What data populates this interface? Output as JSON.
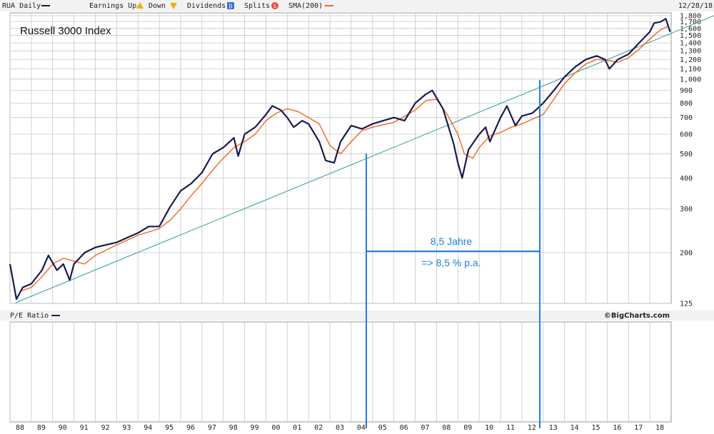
{
  "header": {
    "symbol_label": "RUA Daily",
    "earnings_label": "Earnings Up",
    "down_label": "Down",
    "dividends_label": "Dividends",
    "dividends_glyph": "D",
    "splits_label": "Splits",
    "splits_glyph": "S",
    "sma_label": "SMA(200)",
    "date": "12/28/18"
  },
  "pe_panel": {
    "label": "P/E Ratio",
    "source": "©BigCharts.com"
  },
  "colors": {
    "price": "#1a1a4e",
    "sma": "#f26522",
    "trend": "#2a9d9d",
    "annotation": "#1f7fe0",
    "grid": "#c8c8c8",
    "header_bg": "#f2f2f2"
  },
  "chart_data": {
    "type": "line",
    "title": "Russell 3000 Index",
    "scale": "log",
    "ylim": [
      125,
      1800
    ],
    "y_ticks": [
      125,
      200,
      300,
      400,
      500,
      600,
      700,
      800,
      900,
      1000,
      1100,
      1200,
      1300,
      1400,
      1500,
      1600,
      1700,
      1800
    ],
    "x_tick_labels": [
      "88",
      "89",
      "90",
      "91",
      "92",
      "93",
      "94",
      "95",
      "96",
      "97",
      "98",
      "99",
      "00",
      "01",
      "02",
      "03",
      "04",
      "05",
      "06",
      "07",
      "08",
      "09",
      "10",
      "11",
      "12",
      "13",
      "14",
      "15",
      "16",
      "17",
      "18"
    ],
    "xlim": [
      1988.0,
      2019.0
    ],
    "series": [
      {
        "name": "RUA Daily",
        "x": [
          1988.0,
          1988.3,
          1988.6,
          1989.0,
          1989.5,
          1989.8,
          1990.2,
          1990.5,
          1990.8,
          1991.0,
          1991.5,
          1992.0,
          1992.5,
          1993.0,
          1993.5,
          1994.0,
          1994.5,
          1995.0,
          1995.5,
          1996.0,
          1996.5,
          1997.0,
          1997.5,
          1998.0,
          1998.5,
          1998.7,
          1999.0,
          1999.5,
          2000.0,
          2000.3,
          2000.7,
          2001.0,
          2001.3,
          2001.7,
          2002.0,
          2002.5,
          2002.8,
          2003.2,
          2003.5,
          2004.0,
          2004.5,
          2005.0,
          2005.5,
          2006.0,
          2006.5,
          2007.0,
          2007.5,
          2007.8,
          2008.3,
          2008.8,
          2009.0,
          2009.2,
          2009.5,
          2010.0,
          2010.3,
          2010.5,
          2011.0,
          2011.3,
          2011.7,
          2012.0,
          2012.5,
          2013.0,
          2013.5,
          2014.0,
          2014.5,
          2015.0,
          2015.5,
          2015.9,
          2016.1,
          2016.5,
          2017.0,
          2017.5,
          2018.0,
          2018.2,
          2018.5,
          2018.75,
          2018.95
        ],
        "y": [
          180,
          130,
          145,
          150,
          170,
          195,
          170,
          180,
          155,
          180,
          200,
          210,
          215,
          220,
          230,
          240,
          255,
          255,
          305,
          355,
          380,
          420,
          500,
          530,
          580,
          490,
          600,
          640,
          720,
          780,
          750,
          700,
          640,
          680,
          660,
          560,
          470,
          460,
          560,
          650,
          630,
          660,
          680,
          700,
          680,
          800,
          870,
          900,
          760,
          550,
          460,
          400,
          520,
          600,
          640,
          560,
          700,
          780,
          650,
          710,
          730,
          800,
          900,
          1020,
          1120,
          1200,
          1240,
          1200,
          1100,
          1200,
          1260,
          1400,
          1550,
          1680,
          1700,
          1750,
          1550
        ]
      },
      {
        "name": "SMA(200)",
        "x": [
          1988.5,
          1989.0,
          1989.5,
          1990.0,
          1990.5,
          1991.0,
          1991.5,
          1992.0,
          1993.0,
          1994.0,
          1995.0,
          1995.5,
          1996.0,
          1996.5,
          1997.0,
          1997.5,
          1998.0,
          1998.5,
          1999.0,
          1999.5,
          2000.0,
          2000.5,
          2001.0,
          2001.5,
          2002.0,
          2002.5,
          2003.0,
          2003.5,
          2004.0,
          2004.5,
          2005.0,
          2006.0,
          2007.0,
          2007.5,
          2008.0,
          2008.5,
          2009.0,
          2009.3,
          2009.7,
          2010.0,
          2010.5,
          2011.0,
          2011.5,
          2012.0,
          2012.5,
          2013.0,
          2013.5,
          2014.0,
          2014.5,
          2015.0,
          2015.5,
          2016.0,
          2016.5,
          2017.0,
          2017.5,
          2018.0,
          2018.5,
          2018.9
        ],
        "y": [
          140,
          145,
          160,
          180,
          190,
          185,
          180,
          195,
          215,
          235,
          250,
          270,
          300,
          340,
          380,
          430,
          480,
          530,
          560,
          600,
          680,
          730,
          760,
          740,
          700,
          660,
          540,
          500,
          560,
          620,
          640,
          670,
          750,
          820,
          830,
          720,
          600,
          500,
          480,
          530,
          590,
          610,
          640,
          660,
          690,
          720,
          830,
          960,
          1060,
          1150,
          1200,
          1190,
          1170,
          1220,
          1320,
          1450,
          1580,
          1640
        ]
      }
    ],
    "annotations": [
      "8,5 Jahre",
      "=> 8,5 % p.a."
    ],
    "legend": "top"
  }
}
